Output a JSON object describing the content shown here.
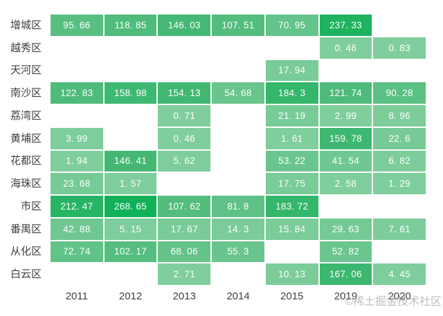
{
  "chart_data": {
    "type": "heatmap",
    "title": "",
    "xlabel": "",
    "ylabel": "",
    "columns": [
      "2011",
      "2012",
      "2013",
      "2014",
      "2015",
      "2019",
      "2020"
    ],
    "rows": [
      "增城区",
      "越秀区",
      "天河区",
      "南沙区",
      "荔湾区",
      "黄埔区",
      "花都区",
      "海珠区",
      "市区",
      "番禺区",
      "从化区",
      "白云区"
    ],
    "series": [
      {
        "name": "增城区",
        "values": [
          95.66,
          118.85,
          146.03,
          107.51,
          70.95,
          237.33,
          null
        ]
      },
      {
        "name": "越秀区",
        "values": [
          null,
          null,
          null,
          null,
          null,
          0.46,
          0.83
        ]
      },
      {
        "name": "天河区",
        "values": [
          null,
          null,
          null,
          null,
          17.94,
          null,
          null
        ]
      },
      {
        "name": "南沙区",
        "values": [
          122.83,
          158.98,
          154.13,
          54.68,
          184.3,
          121.74,
          90.28
        ]
      },
      {
        "name": "荔湾区",
        "values": [
          null,
          null,
          0.71,
          null,
          21.19,
          2.99,
          8.96
        ]
      },
      {
        "name": "黄埔区",
        "values": [
          3.99,
          null,
          0.46,
          null,
          1.61,
          159.78,
          22.6
        ]
      },
      {
        "name": "花都区",
        "values": [
          1.94,
          146.41,
          5.62,
          null,
          53.22,
          41.54,
          6.82
        ]
      },
      {
        "name": "海珠区",
        "values": [
          23.68,
          1.57,
          null,
          null,
          17.75,
          2.58,
          1.29
        ]
      },
      {
        "name": "市区",
        "values": [
          212.47,
          268.65,
          107.62,
          81.8,
          183.72,
          null,
          null
        ]
      },
      {
        "name": "番禺区",
        "values": [
          42.88,
          5.15,
          17.67,
          14.3,
          15.84,
          29.63,
          7.61
        ]
      },
      {
        "name": "从化区",
        "values": [
          72.74,
          102.17,
          68.06,
          55.3,
          null,
          52.82,
          null
        ]
      },
      {
        "name": "白云区",
        "values": [
          null,
          null,
          2.71,
          null,
          10.13,
          167.06,
          4.45
        ]
      }
    ],
    "value_min": 0.46,
    "value_max": 268.65,
    "grid_on": false,
    "legend_position": "none",
    "colors": {
      "scale_low": "#80ce9d",
      "scale_mid": "#49b976",
      "scale_high": "#0fb158",
      "scale_domain": [
        0,
        135,
        270
      ],
      "cell_text": "#ffffff",
      "cell_border": "#ffffff",
      "axis_label": "#3e3e3e",
      "background": "#ffffff"
    }
  },
  "watermark": {
    "text": "©稀土掘金技术社区"
  }
}
